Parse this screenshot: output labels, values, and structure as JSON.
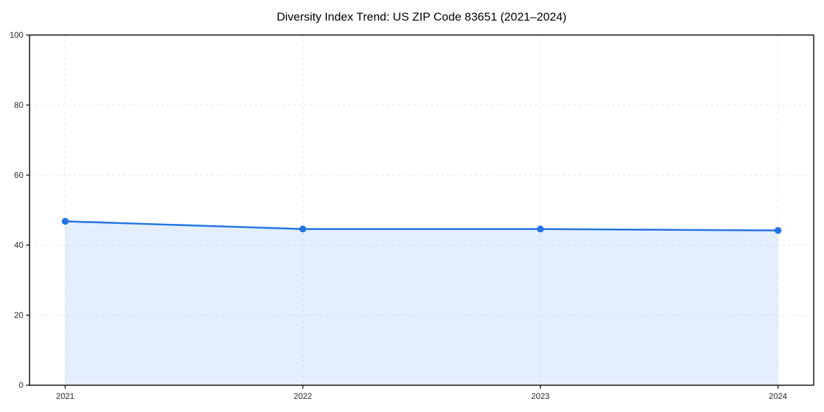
{
  "chart_data": {
    "type": "area",
    "title": "Diversity Index Trend: US ZIP Code 83651 (2021–2024)",
    "categories": [
      "2021",
      "2022",
      "2023",
      "2024"
    ],
    "series": [
      {
        "name": "Diversity Index",
        "values": [
          46.8,
          44.6,
          44.6,
          44.2
        ]
      }
    ],
    "xlabel": "",
    "ylabel": "",
    "ylim": [
      0,
      100
    ],
    "yticks": [
      0,
      20,
      40,
      60,
      80,
      100
    ],
    "grid": "dashed-both-axes",
    "legend_position": "none",
    "colors": {
      "line": "#2273e3",
      "marker": "#2273e3",
      "fill": "rgba(34, 115, 227, 0.12)",
      "gridline": "#e3e3e3",
      "spine": "#1a1a1a",
      "tick_label": "#262626",
      "background": "#ffffff"
    }
  }
}
